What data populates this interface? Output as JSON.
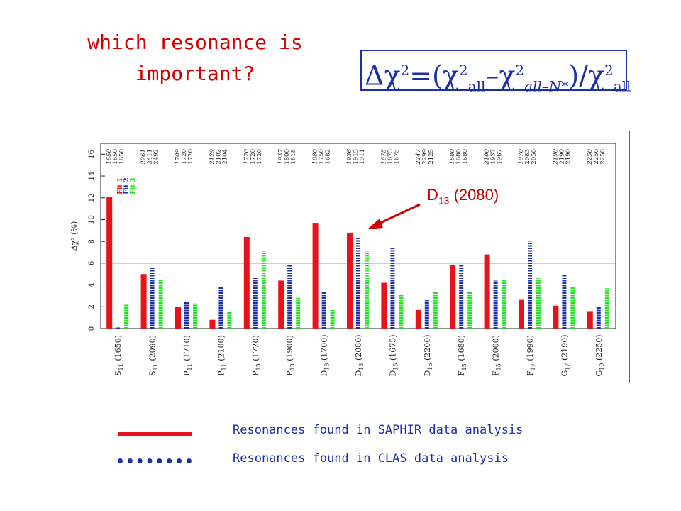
{
  "title_line1": "which resonance is",
  "title_line2": "important?",
  "formula": {
    "delta_chi": "Δχ",
    "sup2": "2",
    "eq_open": "=(χ",
    "sub_all": "all",
    "minus_chi": "–χ",
    "sub_all_minus": "all–N*",
    "close_div": ")/χ",
    "sub_all2": "all"
  },
  "annotation": {
    "label": "D",
    "sub": "13",
    "value": " (2080)"
  },
  "legend": {
    "solid_label": "Resonances found in SAPHIR data analysis",
    "dotted_label": "Resonances found in CLAS data analysis"
  },
  "colors": {
    "red": "#e8121a",
    "blue": "#1c2fa8",
    "green": "#22e022",
    "magenta": "#e03ae0"
  },
  "chart_data": {
    "type": "bar",
    "ylabel": "Δχ² (%)",
    "ylim": [
      0,
      17
    ],
    "yticks": [
      0,
      2,
      4,
      6,
      8,
      10,
      12,
      14,
      16
    ],
    "reference_line": 6,
    "categories": [
      "S11 (1650)",
      "S11 (2090)",
      "P11 (1710)",
      "P11 (2100)",
      "P13 (1720)",
      "P13 (1900)",
      "D13 (1700)",
      "D13 (2080)",
      "D15 (1675)",
      "D15 (2200)",
      "F15 (1680)",
      "F15 (2000)",
      "F17 (1990)",
      "G17 (2190)",
      "G19 (2250)"
    ],
    "category_main": [
      "S",
      "S",
      "P",
      "P",
      "P",
      "P",
      "D",
      "D",
      "D",
      "D",
      "F",
      "F",
      "F",
      "G",
      "G"
    ],
    "category_sub": [
      "11",
      "11",
      "11",
      "11",
      "13",
      "13",
      "13",
      "13",
      "15",
      "15",
      "15",
      "15",
      "17",
      "17",
      "19"
    ],
    "category_mass": [
      " (1650)",
      " (2090)",
      " (1710)",
      " (2100)",
      " (1720)",
      " (1900)",
      " (1700)",
      " (2080)",
      " (1675)",
      " (2200)",
      " (1680)",
      " (2000)",
      " (1990)",
      " (2190)",
      " (2250)"
    ],
    "series": [
      {
        "name": "Fit 1",
        "values": [
          12.1,
          5.0,
          2.0,
          0.8,
          8.4,
          4.4,
          9.7,
          8.8,
          4.2,
          1.7,
          5.8,
          6.8,
          2.7,
          2.1,
          1.6
        ]
      },
      {
        "name": "Fit 2",
        "values": [
          0.1,
          5.6,
          2.5,
          3.8,
          4.7,
          5.9,
          3.4,
          8.3,
          7.5,
          2.6,
          5.9,
          4.4,
          8.0,
          4.9,
          2.0
        ]
      },
      {
        "name": "Fit 3",
        "values": [
          2.2,
          4.5,
          2.3,
          1.5,
          7.1,
          2.8,
          1.7,
          7.1,
          3.2,
          3.4,
          3.4,
          4.5,
          4.6,
          3.8,
          3.7
        ]
      }
    ],
    "top_masses": [
      [
        "1650",
        "1650",
        "1650"
      ],
      [
        "2261",
        "2411",
        "2492"
      ],
      [
        "1709",
        "1720",
        "1720"
      ],
      [
        "2129",
        "2102",
        "2104"
      ],
      [
        "1720",
        "1720",
        "1720"
      ],
      [
        "1937",
        "1800",
        "1818"
      ],
      [
        "1680",
        "1750",
        "1682"
      ],
      [
        "1936",
        "1915",
        "1911"
      ],
      [
        "1675",
        "1675",
        "1675"
      ],
      [
        "2247",
        "2299",
        "2125"
      ],
      [
        "1680",
        "1680",
        "1680"
      ],
      [
        "2100",
        "1937",
        "1967"
      ],
      [
        "1970",
        "2083",
        "2056"
      ],
      [
        "2190",
        "2190",
        "2190"
      ],
      [
        "2250",
        "2250",
        "2250"
      ]
    ],
    "legend_placement": "top-left"
  }
}
